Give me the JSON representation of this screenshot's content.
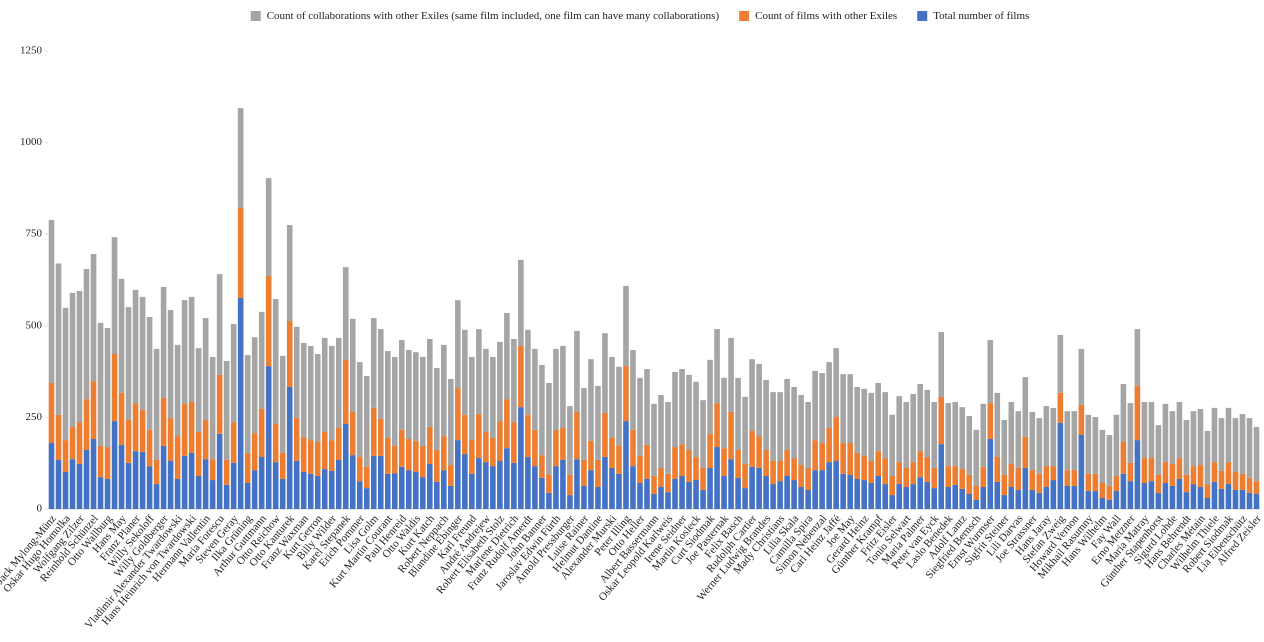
{
  "chart_data": {
    "type": "stacked_bar",
    "categories": [
      "Jack Mylong-Münz",
      null,
      "Oskar Hugo Homolka",
      null,
      "Wolfgang Zilzer",
      null,
      "Reinhold Schünzel",
      null,
      "Otto Wallburg",
      null,
      "Hans May",
      null,
      "Franz Planer",
      null,
      "Willy Sekoloff",
      null,
      "Willy Goldberger",
      null,
      "Vladimir Alexander Twardowski",
      null,
      "Hans Heinrich von Twardowski",
      null,
      "Hermann Vallentin",
      null,
      "Maria Forescu",
      null,
      "Steven Geray",
      null,
      "Ilka Grüning",
      null,
      "Arthur Guttmann",
      null,
      "Otto Reichow",
      null,
      "Otto Kanturek",
      null,
      "Franz Waxman",
      null,
      "Kurt Gerron",
      null,
      "Billy Wilder",
      null,
      "Karel Stepanek",
      null,
      "Erich Pommer",
      null,
      "Lisa Golm",
      null,
      "Kurt Martin Courant",
      null,
      "Paul Henreid",
      null,
      "Otto Waldis",
      null,
      "Kurt Katch",
      null,
      "Robert Neppach",
      null,
      "Blandine Ebinger",
      null,
      "Karl Freund",
      null,
      "André Andrejew",
      null,
      "Robert Elisabeth Stolz",
      null,
      "Marlene Dietrich",
      null,
      "Franz Rudolf Amerdt",
      null,
      "John Banner",
      null,
      "Jaroslav Edwin Fürth",
      null,
      "Arnold Pressburger",
      null,
      "Luise Rainer",
      null,
      "Helmut Dantine",
      null,
      "Alexander Murski",
      null,
      "Peter Illing",
      null,
      "Otto Heller",
      null,
      "Albert Bassermann",
      null,
      "Oskar Leopold Karlweis",
      null,
      "Irene Seidner",
      null,
      "Martin Kosleck",
      null,
      "Curt Siodmak",
      null,
      "Joe Pasternak",
      null,
      "Felix Basch",
      null,
      "Rudolph Cartier",
      null,
      "Werner Ludwig Brandes",
      null,
      "Mady Christians",
      null,
      "Lilia Skala",
      null,
      "Camilla Spira",
      null,
      "Simon Nebenzal",
      null,
      "Carl Heinz Jaffé",
      null,
      "Joe May",
      null,
      "Gerard Heinz",
      null,
      "Günther Krampf",
      null,
      "Fritz Eisler",
      null,
      "Tonio Selwart",
      null,
      "Maria Palmer",
      null,
      "Peter van Eyck",
      null,
      "Laslo Benedek",
      null,
      "Adolf Lantz",
      null,
      "Siegfried Bernsch",
      null,
      "Ernst Wurmser",
      null,
      "Sigfrit Steiner",
      null,
      "Lili Darvas",
      null,
      "Joe Strassner",
      null,
      "Hans Jaray",
      null,
      "Stefan Zweig",
      null,
      "Howard Vernon",
      null,
      "Mikhail Rasumny",
      null,
      "Hans Wilhelm",
      null,
      "Fay Wall",
      null,
      "Erno Metzner",
      null,
      "Maria Matray",
      null,
      "Günther Stapenhorst",
      null,
      "Sigurd Lohde",
      null,
      "Hans Behrendt",
      null,
      "Charles Métain",
      null,
      "Wilhelm Thiele",
      null,
      "Robert Siodmak",
      null,
      "Lia Eibenschütz",
      null,
      "Alfred Zeisler"
    ],
    "series": [
      {
        "name": "Count of collaborations with other Exiles (same film included, one film can have many collaborations)",
        "color": "#a5a5a5",
        "values": [
          445,
          413,
          361,
          366,
          358,
          355,
          347,
          336,
          325,
          319,
          311,
          308,
          309,
          309,
          308,
          303,
          303,
          295,
          249,
          283,
          287,
          229,
          278,
          279,
          275,
          270,
          268,
          272,
          267,
          262,
          265,
          267,
          341,
          265,
          262,
          249,
          256,
          257,
          240,
          257,
          257,
          246,
          253,
          254,
          259,
          248,
          245,
          245,
          237,
          243,
          245,
          243,
          242,
          243,
          240,
          224,
          249,
          235,
          240,
          232,
          227,
          232,
          227,
          221,
          216,
          235,
          227,
          235,
          232,
          221,
          246,
          251,
          221,
          224,
          188,
          221,
          196,
          223,
          202,
          218,
          221,
          216,
          219,
          218,
          213,
          207,
          197,
          199,
          196,
          205,
          205,
          205,
          205,
          185,
          202,
          202,
          192,
          202,
          197,
          183,
          196,
          197,
          191,
          188,
          188,
          194,
          194,
          191,
          180,
          189,
          191,
          180,
          188,
          188,
          188,
          180,
          183,
          186,
          186,
          180,
          167,
          180,
          180,
          186,
          183,
          183,
          180,
          177,
          172,
          175,
          169,
          161,
          153,
          172,
          172,
          175,
          150,
          169,
          155,
          163,
          159,
          152,
          164,
          159,
          158,
          161,
          161,
          153,
          161,
          155,
          145,
          139,
          167,
          158,
          163,
          155,
          153,
          153,
          136,
          159,
          144,
          153,
          150,
          150,
          153,
          145,
          148,
          144,
          148,
          147,
          163,
          163,
          148
        ]
      },
      {
        "name": "Count of films with other Exiles",
        "color": "#ed7d31",
        "values": [
          164,
          123,
          87,
          88,
          114,
          139,
          158,
          85,
          87,
          183,
          142,
          117,
          131,
          114,
          99,
          66,
          131,
          117,
          117,
          142,
          139,
          120,
          107,
          57,
          161,
          68,
          111,
          246,
          82,
          101,
          131,
          246,
          104,
          71,
          180,
          117,
          96,
          92,
          93,
          101,
          84,
          87,
          175,
          118,
          66,
          58,
          131,
          101,
          98,
          74,
          101,
          85,
          85,
          85,
          101,
          87,
          93,
          57,
          142,
          107,
          92,
          120,
          82,
          77,
          109,
          134,
          111,
          167,
          115,
          99,
          62,
          49,
          99,
          87,
          55,
          129,
          71,
          80,
          74,
          120,
          82,
          76,
          150,
          99,
          74,
          93,
          49,
          52,
          50,
          87,
          87,
          87,
          63,
          60,
          93,
          120,
          76,
          129,
          76,
          66,
          98,
          87,
          71,
          63,
          55,
          71,
          60,
          60,
          60,
          82,
          74,
          93,
          120,
          84,
          87,
          71,
          66,
          60,
          68,
          71,
          52,
          60,
          52,
          60,
          71,
          68,
          55,
          129,
          57,
          51,
          54,
          52,
          38,
          55,
          98,
          68,
          55,
          63,
          60,
          85,
          54,
          52,
          57,
          38,
          82,
          43,
          43,
          82,
          47,
          47,
          41,
          38,
          41,
          87,
          50,
          148,
          68,
          63,
          49,
          57,
          60,
          57,
          47,
          49,
          60,
          38,
          54,
          49,
          60,
          49,
          44,
          41,
          35
        ]
      },
      {
        "name": "Total number of films",
        "color": "#4472c4",
        "values": [
          180,
          134,
          101,
          136,
          123,
          161,
          191,
          87,
          82,
          240,
          175,
          126,
          158,
          156,
          117,
          68,
          172,
          131,
          82,
          145,
          153,
          90,
          136,
          79,
          205,
          66,
          126,
          576,
          71,
          106,
          142,
          390,
          128,
          82,
          333,
          131,
          101,
          96,
          90,
          109,
          104,
          134,
          232,
          147,
          76,
          57,
          145,
          145,
          96,
          98,
          115,
          106,
          101,
          87,
          123,
          74,
          106,
          63,
          188,
          150,
          96,
          139,
          128,
          117,
          131,
          166,
          126,
          278,
          142,
          117,
          85,
          44,
          117,
          134,
          38,
          136,
          63,
          106,
          60,
          142,
          112,
          96,
          240,
          117,
          71,
          82,
          41,
          60,
          46,
          82,
          90,
          74,
          79,
          52,
          112,
          169,
          90,
          136,
          85,
          57,
          115,
          112,
          90,
          68,
          76,
          90,
          79,
          60,
          52,
          106,
          106,
          128,
          131,
          96,
          93,
          82,
          79,
          71,
          90,
          68,
          38,
          68,
          60,
          68,
          87,
          74,
          57,
          177,
          60,
          66,
          55,
          41,
          25,
          60,
          191,
          74,
          38,
          60,
          52,
          112,
          52,
          44,
          60,
          79,
          235,
          63,
          63,
          202,
          49,
          49,
          30,
          25,
          49,
          96,
          76,
          188,
          71,
          76,
          44,
          71,
          63,
          82,
          46,
          68,
          60,
          30,
          74,
          55,
          68,
          52,
          52,
          44,
          41
        ]
      }
    ],
    "ylim": [
      0,
      1250
    ],
    "yticks": [
      0,
      250,
      500,
      750,
      1000,
      1250
    ],
    "grid": false,
    "legend": "top"
  }
}
